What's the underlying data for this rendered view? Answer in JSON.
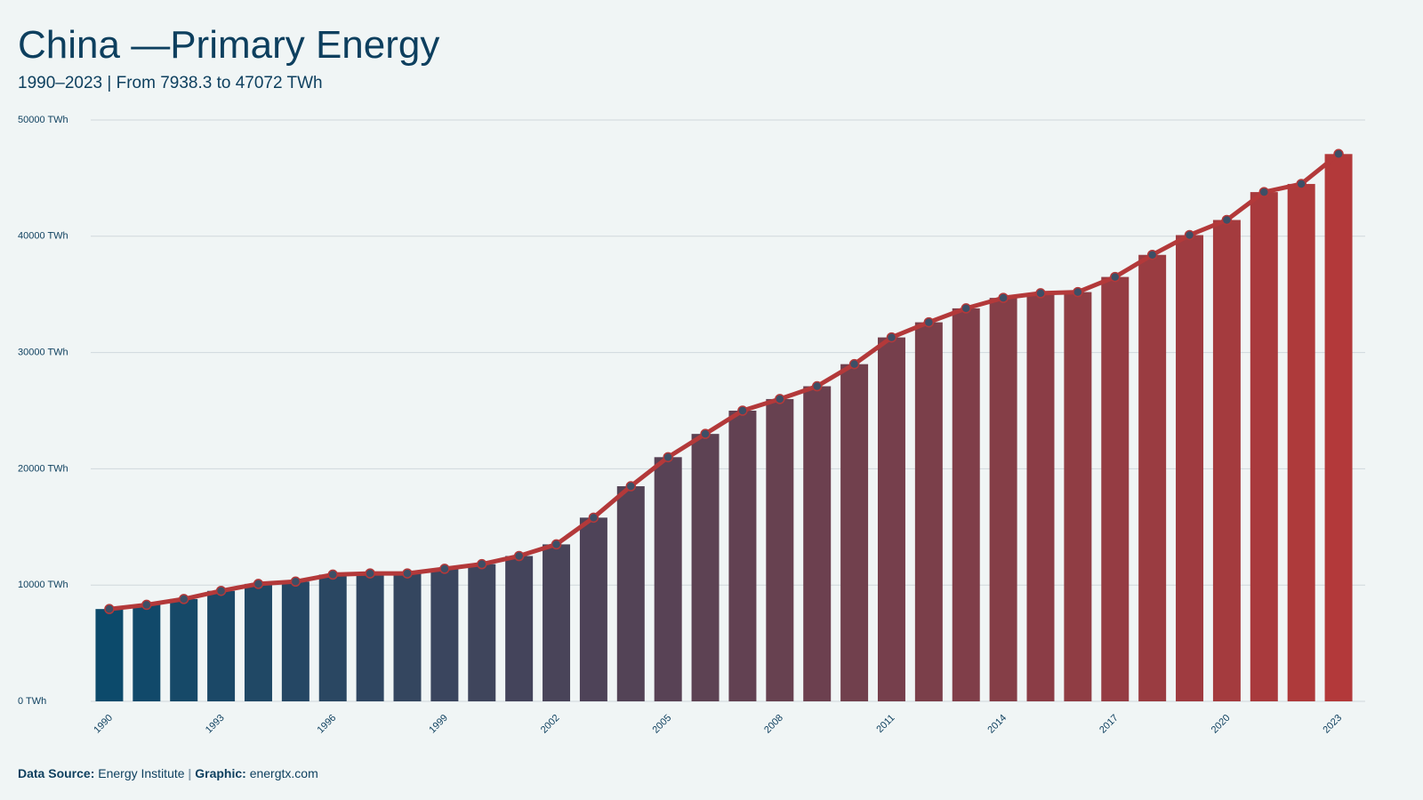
{
  "chart_data": {
    "type": "bar",
    "overlay": "line",
    "title": "China —Primary Energy",
    "subtitle": "1990–2023 | From 7938.3 to 47072 TWh",
    "x": [
      1990,
      1991,
      1992,
      1993,
      1994,
      1995,
      1996,
      1997,
      1998,
      1999,
      2000,
      2001,
      2002,
      2003,
      2004,
      2005,
      2006,
      2007,
      2008,
      2009,
      2010,
      2011,
      2012,
      2013,
      2014,
      2015,
      2016,
      2017,
      2018,
      2019,
      2020,
      2021,
      2022,
      2023
    ],
    "values": [
      7938.3,
      8300,
      8800,
      9500,
      10100,
      10300,
      10900,
      11000,
      11000,
      11400,
      11800,
      12500,
      13500,
      15800,
      18500,
      21000,
      23000,
      25000,
      26000,
      27100,
      29000,
      31300,
      32600,
      33800,
      34700,
      35100,
      35200,
      36500,
      38400,
      40100,
      41400,
      43800,
      44500,
      47072
    ],
    "color_start": "#0c4a6b",
    "color_end": "#b3393a",
    "line_color": "#b3393a",
    "marker_color": "#3d4f66",
    "xlim": [
      1989.5,
      2023.5
    ],
    "xticks": [
      1990,
      1993,
      1996,
      1999,
      2002,
      2005,
      2008,
      2011,
      2014,
      2017,
      2020,
      2023
    ],
    "ylim": [
      0,
      50000
    ],
    "yticks": [
      {
        "value": 0,
        "label": "0 TWh"
      },
      {
        "value": 10000,
        "label": "10000 TWh"
      },
      {
        "value": 20000,
        "label": "20000 TWh"
      },
      {
        "value": 30000,
        "label": "30000 TWh"
      },
      {
        "value": 40000,
        "label": "40000 TWh"
      },
      {
        "value": 50000,
        "label": "50000 TWh"
      }
    ],
    "grid": true,
    "footer": {
      "source_label": "Data Source:",
      "source": "Energy Institute",
      "separator": "|",
      "graphic_label": "Graphic:",
      "graphic": "energtx.com"
    }
  }
}
